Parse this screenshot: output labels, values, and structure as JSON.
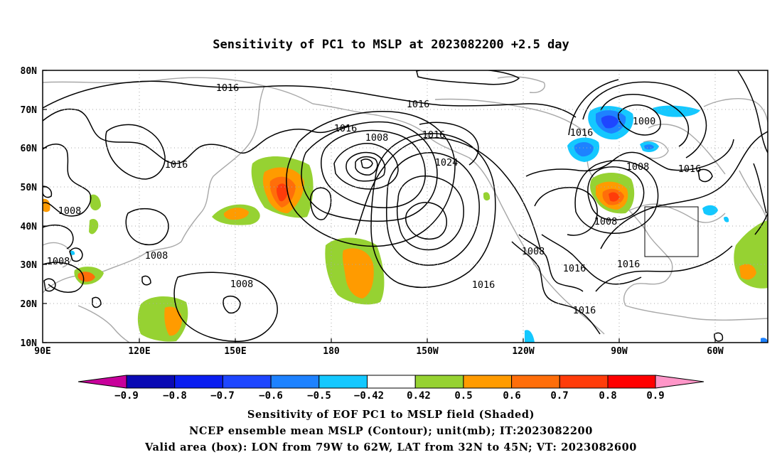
{
  "title": "Sensitivity of PC1 to MSLP at 2023082200 +2.5 day",
  "lat_labels": [
    "80N",
    "70N",
    "60N",
    "50N",
    "40N",
    "30N",
    "20N",
    "10N"
  ],
  "lon_labels": [
    "90E",
    "120E",
    "150E",
    "180",
    "150W",
    "120W",
    "90W",
    "60W"
  ],
  "contour_labels": [
    "1016",
    "1016",
    "1016",
    "1016",
    "1016",
    "1016",
    "1016",
    "1016",
    "1016",
    "1016",
    "1016",
    "1008",
    "1008",
    "1008",
    "1008",
    "1008",
    "1008",
    "1008",
    "1000",
    "1024"
  ],
  "colorbar": {
    "labels": [
      "-0.9",
      "-0.8",
      "-0.7",
      "-0.6",
      "-0.5",
      "-0.42",
      "0.42",
      "0.5",
      "0.6",
      "0.7",
      "0.8",
      "0.9"
    ],
    "colors": [
      "#c8009b",
      "#0a0ab4",
      "#0a1ef0",
      "#1e46ff",
      "#1e82ff",
      "#14c8ff",
      "#ffffff",
      "#96d232",
      "#ff9b00",
      "#ff6e0a",
      "#ff3c0a",
      "#ff0000",
      "#ff96c8"
    ]
  },
  "valid_box": {
    "lon": [
      -79,
      -62
    ],
    "lat": [
      32,
      45
    ]
  },
  "captions": [
    "Sensitivity of EOF PC1 to MSLP field (Shaded)",
    "NCEP ensemble mean MSLP (Contour); unit(mb); IT:2023082200",
    "Valid area (box): LON from 79W to 62W, LAT from 32N to 45N; VT: 2023082600"
  ]
}
